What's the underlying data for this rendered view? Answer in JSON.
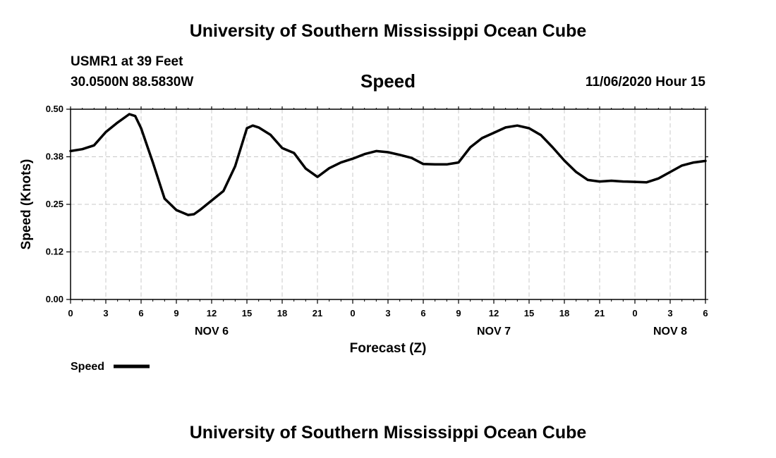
{
  "header": {
    "title_top": "University of Southern Mississippi Ocean Cube",
    "station": "USMR1 at 39 Feet",
    "coords": "30.0500N 88.5830W",
    "datetime": "11/06/2020 Hour 15",
    "title_bottom": "University of Southern Mississippi Ocean Cube"
  },
  "chart_data": {
    "type": "line",
    "title": "Speed",
    "xlabel": "Forecast (Z)",
    "ylabel": "Speed (Knots)",
    "ylim": [
      0,
      0.5
    ],
    "xlim": [
      0,
      54
    ],
    "y_ticks": [
      "0.00",
      "0.12",
      "0.25",
      "0.38",
      "0.50"
    ],
    "x_tick_labels": [
      "0",
      "3",
      "6",
      "9",
      "12",
      "15",
      "18",
      "21",
      "0",
      "3",
      "6",
      "9",
      "12",
      "15",
      "18",
      "21",
      "0",
      "3",
      "6"
    ],
    "date_labels": [
      {
        "label": "NOV 6",
        "at_hour": 12
      },
      {
        "label": "NOV 7",
        "at_hour": 36
      },
      {
        "label": "NOV 8",
        "at_hour": 51
      }
    ],
    "grid": true,
    "legend": {
      "position": "bottom-left",
      "entries": [
        "Speed"
      ]
    },
    "series": [
      {
        "name": "Speed",
        "color": "#000000",
        "x": [
          0,
          1,
          2,
          3,
          4,
          5,
          5.5,
          6,
          7,
          8,
          9,
          10,
          10.5,
          11,
          12,
          13,
          14,
          15,
          15.5,
          16,
          17,
          18,
          19,
          20,
          21,
          22,
          23,
          24,
          25,
          26,
          27,
          28,
          29,
          30,
          31,
          32,
          33,
          34,
          35,
          36,
          37,
          38,
          39,
          40,
          41,
          42,
          43,
          44,
          45,
          46,
          47,
          48,
          49,
          50,
          51,
          52,
          53,
          54
        ],
        "values": [
          0.39,
          0.395,
          0.405,
          0.44,
          0.465,
          0.487,
          0.482,
          0.45,
          0.36,
          0.265,
          0.235,
          0.222,
          0.224,
          0.235,
          0.26,
          0.285,
          0.35,
          0.45,
          0.457,
          0.452,
          0.433,
          0.398,
          0.385,
          0.344,
          0.322,
          0.345,
          0.36,
          0.37,
          0.382,
          0.39,
          0.387,
          0.38,
          0.372,
          0.356,
          0.355,
          0.355,
          0.36,
          0.4,
          0.424,
          0.438,
          0.452,
          0.457,
          0.45,
          0.432,
          0.4,
          0.365,
          0.335,
          0.314,
          0.31,
          0.312,
          0.31,
          0.309,
          0.308,
          0.318,
          0.335,
          0.352,
          0.36,
          0.364
        ]
      }
    ]
  }
}
